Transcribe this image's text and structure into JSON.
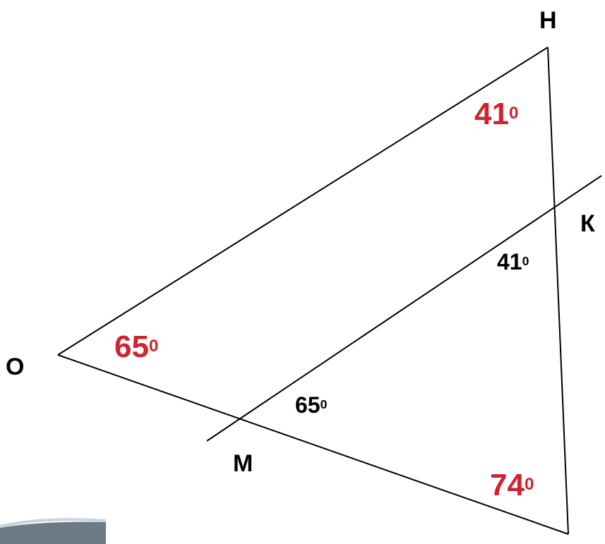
{
  "colors": {
    "line": "#000000",
    "accent": "#d0232f",
    "text": "#000000"
  },
  "vertices": {
    "H": "Н",
    "K": "К",
    "O": "О",
    "M": "М"
  },
  "angles": {
    "angle_H": {
      "value": "41",
      "degree": "0"
    },
    "angle_O": {
      "value": "65",
      "degree": "0"
    },
    "angle_bottom": {
      "value": "74",
      "degree": "0"
    },
    "angle_K": {
      "value": "41",
      "degree": "0"
    },
    "angle_M": {
      "value": "65",
      "degree": "0"
    }
  }
}
